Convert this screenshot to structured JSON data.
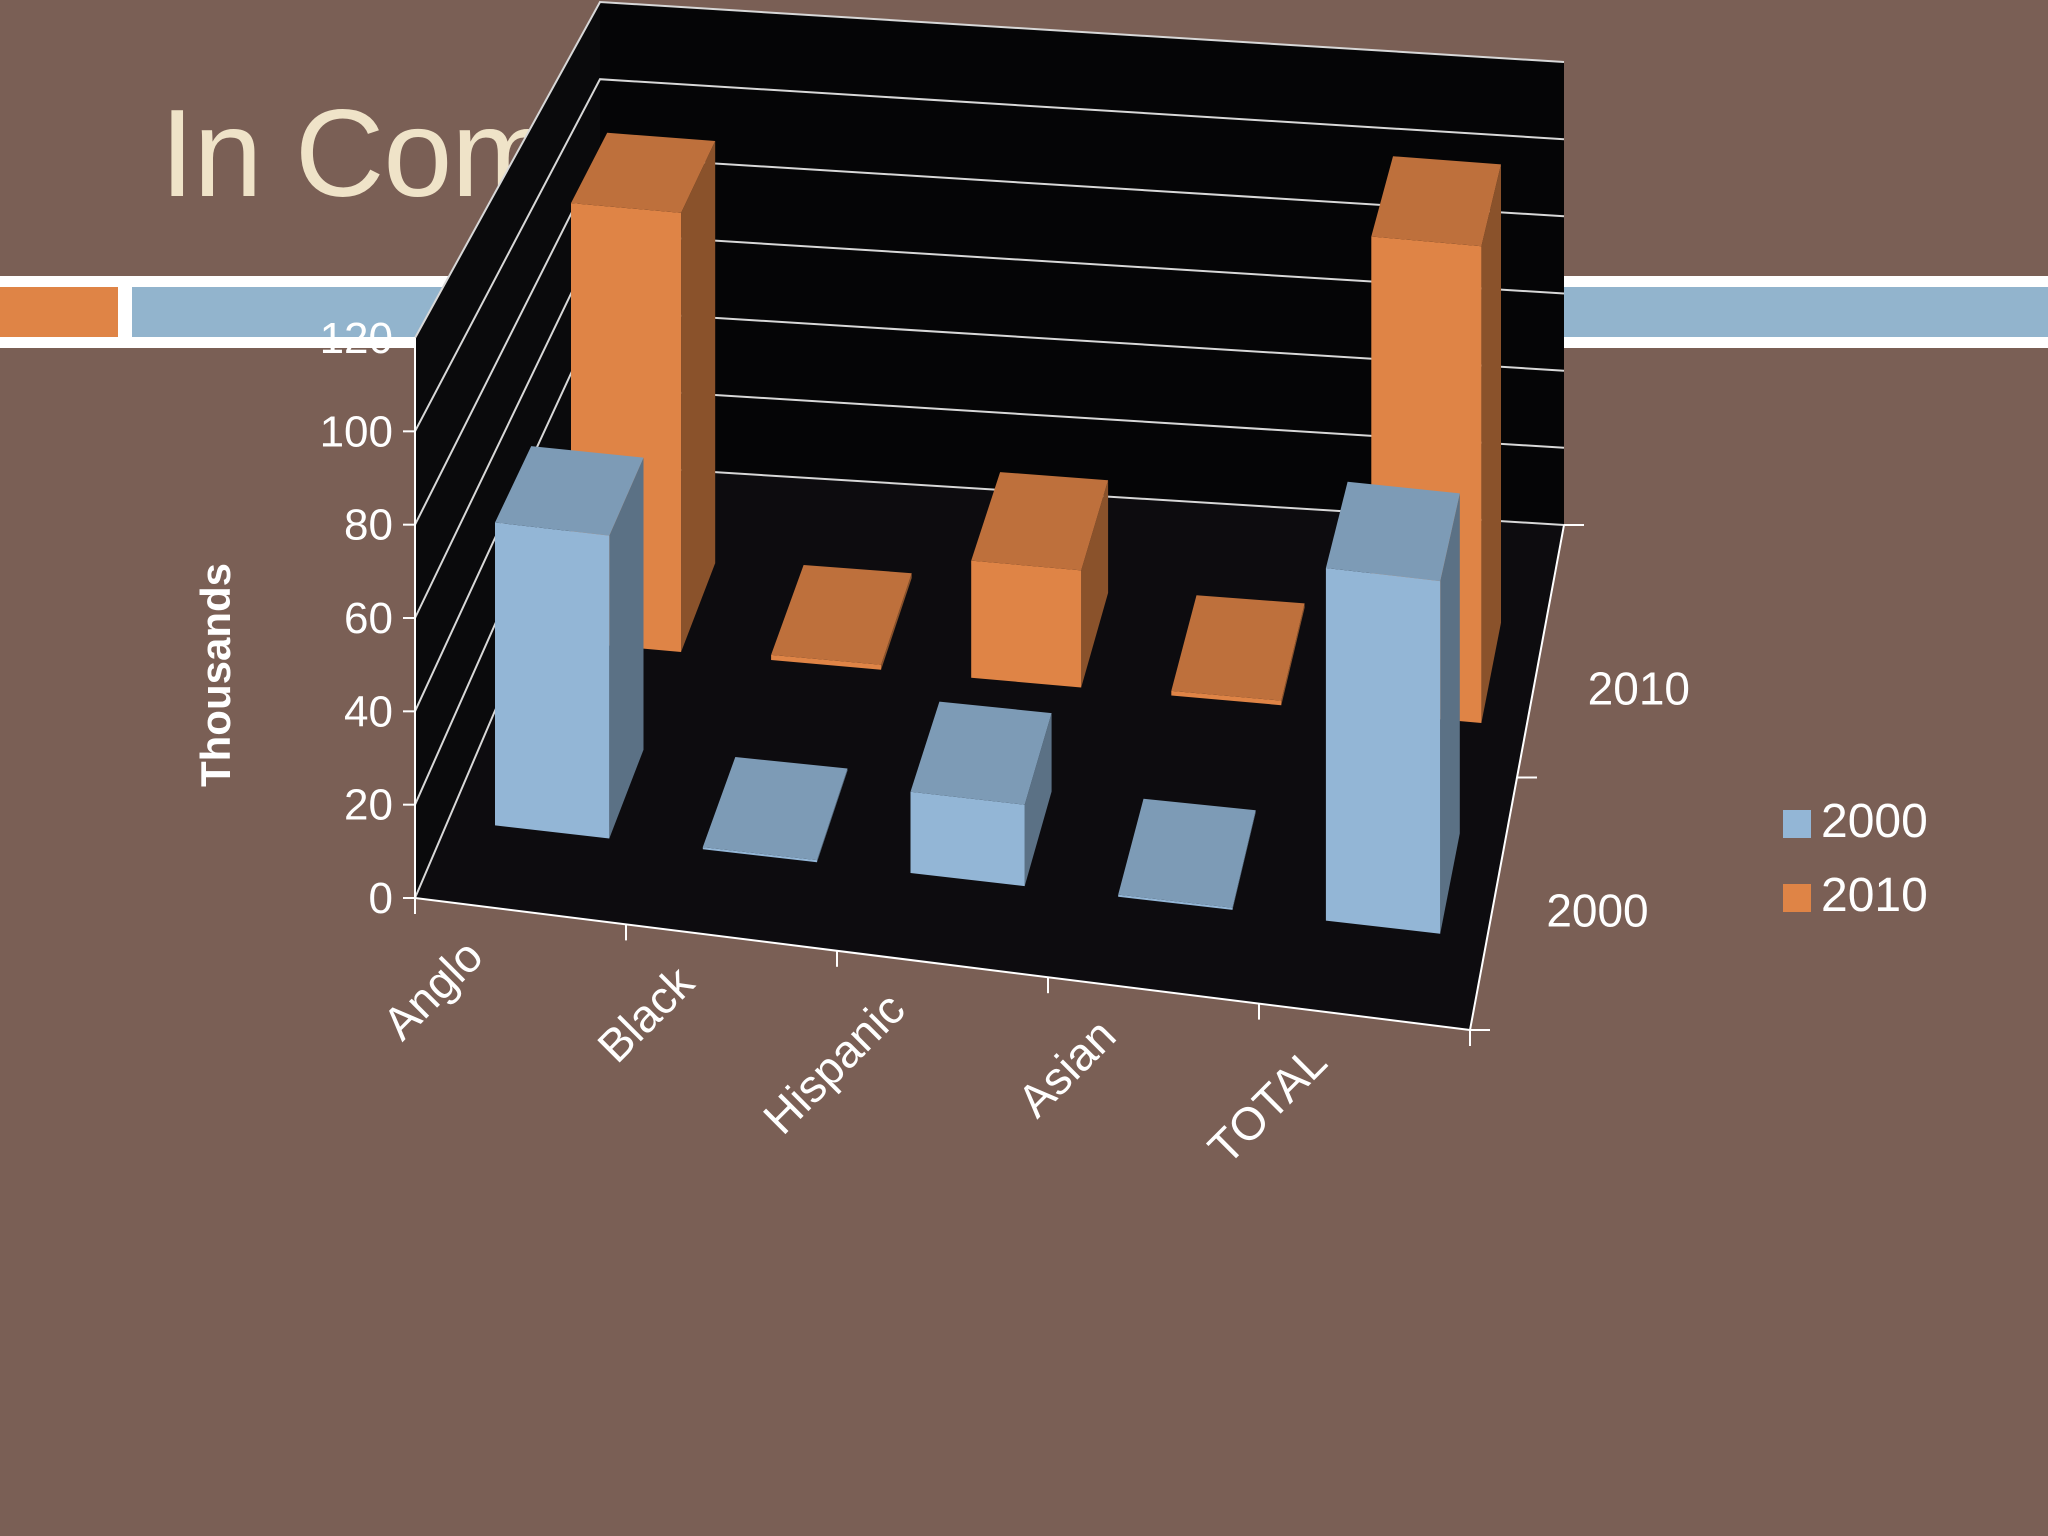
{
  "slide": {
    "title": "In Comal County"
  },
  "colors": {
    "background": "#7a5f55",
    "title": "#efe3c8",
    "accent_orange": "#df8446",
    "accent_blue": "#92b4cd",
    "series_2000": "#93b6d6",
    "series_2010": "#df8446",
    "plot_floor": "#000000"
  },
  "chart_data": {
    "type": "bar",
    "variant": "3d-column",
    "ylabel": "Thousands",
    "ylim": [
      0,
      120
    ],
    "yticks": [
      0,
      20,
      40,
      60,
      80,
      100,
      120
    ],
    "categories": [
      "Anglo",
      "Black",
      "Hispanic",
      "Asian",
      "TOTAL"
    ],
    "depth_labels": [
      "2010",
      "2000"
    ],
    "legend_position": "right",
    "grid": true,
    "series": [
      {
        "name": "2000",
        "values": [
          67,
          0.3,
          18,
          0.5,
          78
        ]
      },
      {
        "name": "2010",
        "values": [
          105,
          1.2,
          28,
          1.1,
          114
        ]
      }
    ]
  }
}
